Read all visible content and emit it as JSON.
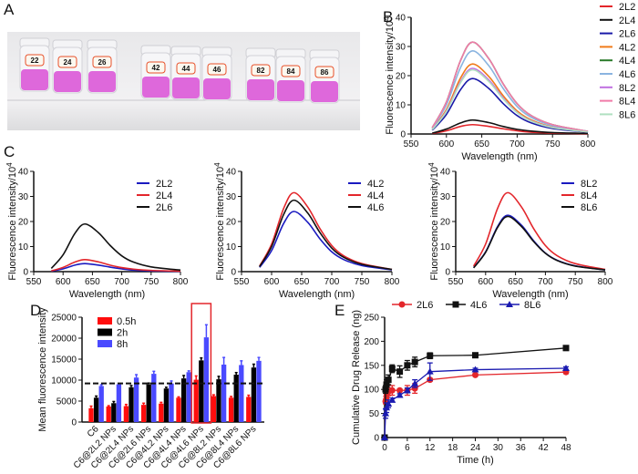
{
  "panel_labels": {
    "a": "A",
    "b": "B",
    "c": "C",
    "d": "D",
    "e": "E"
  },
  "photo": {
    "vial_labels": [
      "22",
      "24",
      "26",
      "42",
      "44",
      "46",
      "82",
      "84",
      "86"
    ],
    "liquid_color": "#d94fd6"
  },
  "chart_data": [
    {
      "id": "B",
      "type": "line",
      "xlabel": "Wavelength (nm)",
      "ylabel": "Fluorescence intensity/10",
      "ylabel_sup": "4",
      "xlim": [
        550,
        800
      ],
      "ylim": [
        0,
        40
      ],
      "xticks": [
        550,
        600,
        650,
        700,
        750,
        800
      ],
      "yticks": [
        0,
        10,
        20,
        30,
        40
      ],
      "legend_position": "right",
      "x": [
        580,
        600,
        620,
        637,
        660,
        680,
        700,
        720,
        750,
        800
      ],
      "series": [
        {
          "name": "2L2",
          "color": "#e3262b",
          "values": [
            0.2,
            1.1,
            2.6,
            3.2,
            2.6,
            1.8,
            1.1,
            0.6,
            0.3,
            0.1
          ]
        },
        {
          "name": "2L4",
          "color": "#111111",
          "values": [
            0.3,
            1.7,
            3.8,
            4.8,
            3.9,
            2.6,
            1.6,
            1.0,
            0.5,
            0.2
          ]
        },
        {
          "name": "2L6",
          "color": "#1a1aa8",
          "values": [
            1.3,
            6.7,
            15.2,
            19,
            15.6,
            10.5,
            6.3,
            3.8,
            1.9,
            0.6
          ]
        },
        {
          "name": "4L2",
          "color": "#f07a1a",
          "values": [
            1.7,
            8.4,
            19.2,
            24,
            19.7,
            13.2,
            7.9,
            4.8,
            2.4,
            0.7
          ]
        },
        {
          "name": "4L4",
          "color": "#2a7a2a",
          "values": [
            2.2,
            11,
            25.2,
            31.5,
            25.8,
            17.3,
            10.4,
            6.3,
            3.2,
            0.9
          ]
        },
        {
          "name": "4L6",
          "color": "#8ab4e0",
          "values": [
            2.0,
            10,
            22.8,
            28.5,
            23.4,
            15.7,
            9.4,
            5.7,
            2.9,
            0.9
          ]
        },
        {
          "name": "8L2",
          "color": "#c070e0",
          "values": [
            1.6,
            7.9,
            18,
            22.5,
            18.5,
            12.4,
            7.4,
            4.5,
            2.3,
            0.7
          ]
        },
        {
          "name": "8L4",
          "color": "#f07aa8",
          "values": [
            2.2,
            11,
            25.2,
            31.5,
            25.8,
            17.3,
            10.4,
            6.3,
            3.2,
            0.9
          ]
        },
        {
          "name": "8L6",
          "color": "#b0e0c0",
          "values": [
            1.5,
            7.7,
            17.6,
            22,
            18,
            12.1,
            7.3,
            4.4,
            2.2,
            0.7
          ]
        }
      ]
    },
    {
      "id": "C1",
      "type": "line",
      "xlabel": "Wavelength (nm)",
      "ylabel": "Fluorescence intensity/10",
      "ylabel_sup": "4",
      "xlim": [
        550,
        800
      ],
      "ylim": [
        0,
        40
      ],
      "xticks": [
        550,
        600,
        650,
        700,
        750,
        800
      ],
      "yticks": [
        0,
        10,
        20,
        30,
        40
      ],
      "legend_position": "top-right",
      "x": [
        580,
        600,
        620,
        637,
        660,
        680,
        700,
        720,
        750,
        800
      ],
      "series": [
        {
          "name": "2L2",
          "color": "#1a1ac0",
          "values": [
            0.2,
            1.1,
            2.6,
            3.2,
            2.6,
            1.8,
            1.1,
            0.6,
            0.3,
            0.1
          ]
        },
        {
          "name": "2L4",
          "color": "#e3262b",
          "values": [
            0.3,
            1.7,
            3.8,
            4.8,
            3.9,
            2.6,
            1.6,
            1.0,
            0.5,
            0.2
          ]
        },
        {
          "name": "2L6",
          "color": "#111111",
          "values": [
            1.3,
            6.7,
            15.2,
            19,
            15.6,
            10.5,
            6.3,
            3.8,
            1.9,
            0.6
          ]
        }
      ]
    },
    {
      "id": "C2",
      "type": "line",
      "xlabel": "Wavelength (nm)",
      "ylabel": "Fluorescence intensity/10",
      "ylabel_sup": "4",
      "xlim": [
        550,
        800
      ],
      "ylim": [
        0,
        40
      ],
      "xticks": [
        550,
        600,
        650,
        700,
        750,
        800
      ],
      "yticks": [
        0,
        10,
        20,
        30,
        40
      ],
      "legend_position": "top-right",
      "x": [
        580,
        600,
        620,
        637,
        660,
        680,
        700,
        720,
        750,
        800
      ],
      "series": [
        {
          "name": "4L2",
          "color": "#1a1ac0",
          "values": [
            1.7,
            8.4,
            19.2,
            24,
            19.7,
            13.2,
            7.9,
            4.8,
            2.4,
            0.7
          ]
        },
        {
          "name": "4L4",
          "color": "#e3262b",
          "values": [
            2.2,
            11,
            25.2,
            31.5,
            25.8,
            17.3,
            10.4,
            6.3,
            3.2,
            0.9
          ]
        },
        {
          "name": "4L6",
          "color": "#111111",
          "values": [
            2.0,
            10,
            22.8,
            28.5,
            23.4,
            15.7,
            9.4,
            5.7,
            2.9,
            0.9
          ]
        }
      ]
    },
    {
      "id": "C3",
      "type": "line",
      "xlabel": "Wavelength (nm)",
      "ylabel": "Fluorescence intensity/10",
      "ylabel_sup": "4",
      "xlim": [
        550,
        800
      ],
      "ylim": [
        0,
        40
      ],
      "xticks": [
        550,
        600,
        650,
        700,
        750,
        800
      ],
      "yticks": [
        0,
        10,
        20,
        30,
        40
      ],
      "legend_position": "top-right",
      "x": [
        580,
        600,
        620,
        637,
        660,
        680,
        700,
        720,
        750,
        800
      ],
      "series": [
        {
          "name": "8L2",
          "color": "#1a1ac0",
          "values": [
            1.6,
            7.9,
            18,
            22.5,
            18.5,
            12.4,
            7.4,
            4.5,
            2.3,
            0.7
          ]
        },
        {
          "name": "8L4",
          "color": "#e3262b",
          "values": [
            2.2,
            11,
            25.2,
            31.5,
            25.8,
            17.3,
            10.4,
            6.3,
            3.2,
            0.9
          ]
        },
        {
          "name": "8L6",
          "color": "#111111",
          "values": [
            1.5,
            7.7,
            17.6,
            22,
            18,
            12.1,
            7.3,
            4.4,
            2.2,
            0.7
          ]
        }
      ]
    },
    {
      "id": "D",
      "type": "bar",
      "ylabel": "Mean fluorescence intensity",
      "ylim": [
        0,
        25000
      ],
      "yticks": [
        0,
        5000,
        10000,
        15000,
        20000,
        25000
      ],
      "legend_position": "top-left",
      "reference_line": 9200,
      "highlighted_category": "C6@4L6 NPs",
      "highlight_color": "#e3262b",
      "categories": [
        "C6",
        "C6@2L2 NPs",
        "C6@2L4 NPs",
        "C6@2L6 NPs",
        "C6@4L2 NPs",
        "C6@4L4 NPs",
        "C6@4L6 NPs",
        "C6@8L2 NPs",
        "C6@8L4 NPs",
        "C6@8L6 NPs"
      ],
      "series": [
        {
          "name": "0.5h",
          "color": "#ff0d0d",
          "values": [
            3300,
            3700,
            3800,
            4100,
            4400,
            5800,
            10100,
            6200,
            5800,
            6000
          ],
          "errors": [
            500,
            200,
            400,
            400,
            300,
            200,
            900,
            300,
            300,
            400
          ]
        },
        {
          "name": "2h",
          "color": "#000000",
          "values": [
            5800,
            4500,
            8300,
            9000,
            8000,
            10400,
            14700,
            10200,
            11300,
            13000
          ],
          "errors": [
            400,
            400,
            400,
            300,
            300,
            700,
            600,
            700,
            500,
            800
          ]
        },
        {
          "name": "8h",
          "color": "#4a4aff",
          "values": [
            8600,
            9000,
            10600,
            11500,
            9200,
            11900,
            20200,
            13700,
            13600,
            14600
          ],
          "errors": [
            300,
            0,
            700,
            600,
            600,
            300,
            3000,
            1700,
            1000,
            800
          ]
        }
      ]
    },
    {
      "id": "E",
      "type": "line",
      "xlabel": "Time (h)",
      "ylabel": "Cumulative Drug Release (ng)",
      "xlim": [
        0,
        48
      ],
      "ylim": [
        0,
        250
      ],
      "xticks": [
        0,
        6,
        12,
        18,
        24,
        30,
        36,
        42,
        48
      ],
      "yticks": [
        0,
        50,
        100,
        150,
        200,
        250
      ],
      "legend_position": "top",
      "x": [
        0,
        0.25,
        0.5,
        1,
        2,
        4,
        6,
        8,
        12,
        24,
        48
      ],
      "series": [
        {
          "name": "2L6",
          "color": "#e3262b",
          "marker": "circle",
          "values": [
            0,
            75,
            85,
            95,
            98,
            98,
            98,
            102,
            120,
            130,
            136
          ],
          "errors": [
            0,
            5,
            5,
            8,
            10,
            3,
            10,
            10,
            3,
            3,
            3
          ]
        },
        {
          "name": "4L6",
          "color": "#111111",
          "marker": "square",
          "values": [
            0,
            100,
            110,
            120,
            143,
            137,
            150,
            157,
            170,
            171,
            186
          ],
          "errors": [
            0,
            8,
            10,
            10,
            8,
            12,
            10,
            10,
            6,
            3,
            5
          ]
        },
        {
          "name": "8L6",
          "color": "#1a1ab0",
          "marker": "triangle",
          "values": [
            0,
            50,
            62,
            70,
            78,
            88,
            98,
            112,
            137,
            141,
            144
          ],
          "errors": [
            0,
            10,
            10,
            8,
            4,
            3,
            5,
            8,
            18,
            3,
            3
          ]
        }
      ]
    }
  ]
}
